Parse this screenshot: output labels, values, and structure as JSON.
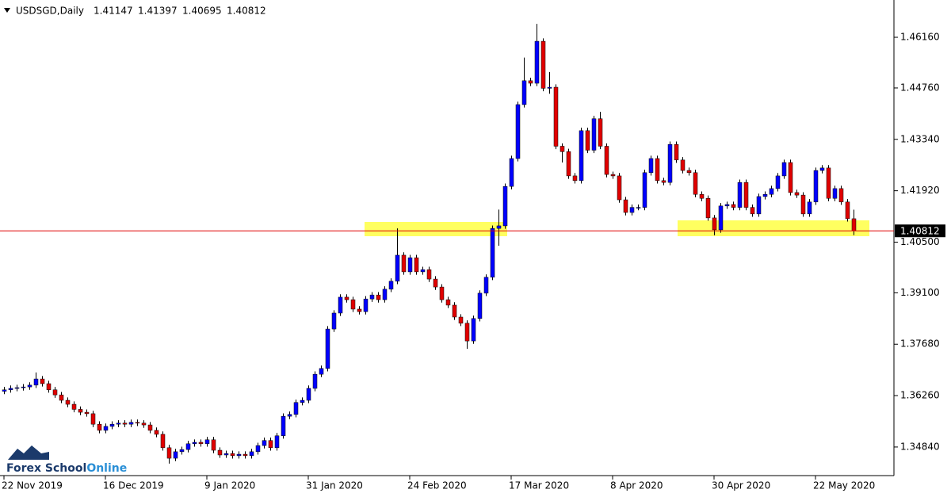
{
  "chart_data": {
    "type": "candlestick",
    "title": "USDSGD,Daily",
    "watermark": [
      "Forex School",
      "Online"
    ],
    "up_color": "#0000ff",
    "down_color": "#e00000",
    "price_line_color": "#e00000",
    "categories": [
      "22 Nov 2019",
      null,
      null,
      null,
      null,
      null,
      null,
      null,
      null,
      null,
      null,
      null,
      null,
      null,
      null,
      null,
      "16 Dec 2019",
      null,
      null,
      null,
      null,
      null,
      null,
      null,
      null,
      null,
      null,
      null,
      null,
      null,
      null,
      null,
      "9 Jan 2020",
      null,
      null,
      null,
      null,
      null,
      null,
      null,
      null,
      null,
      null,
      null,
      null,
      null,
      null,
      null,
      "31 Jan 2020",
      null,
      null,
      null,
      null,
      null,
      null,
      null,
      null,
      null,
      null,
      null,
      null,
      null,
      null,
      null,
      "24 Feb 2020",
      null,
      null,
      null,
      null,
      null,
      null,
      null,
      null,
      null,
      null,
      null,
      null,
      null,
      null,
      null,
      "17 Mar 2020",
      null,
      null,
      null,
      null,
      null,
      null,
      null,
      null,
      null,
      null,
      null,
      null,
      null,
      null,
      null,
      "8 Apr 2020",
      null,
      null,
      null,
      null,
      null,
      null,
      null,
      null,
      null,
      null,
      null,
      null,
      null,
      null,
      null,
      "30 Apr 2020",
      null,
      null,
      null,
      null,
      null,
      null,
      null,
      null,
      null,
      null,
      null,
      null,
      null,
      null,
      null,
      "22 May 2020",
      null,
      null,
      null,
      null,
      null,
      null
    ],
    "open": [
      1.3638,
      1.3642,
      1.3646,
      1.3648,
      1.365,
      1.3655,
      1.3672,
      1.3659,
      1.3642,
      1.3628,
      1.3613,
      1.3602,
      1.3588,
      1.358,
      1.3576,
      1.3547,
      1.353,
      1.3541,
      1.3547,
      1.355,
      1.3547,
      1.3552,
      1.355,
      1.3545,
      1.353,
      1.3519,
      1.3482,
      1.3453,
      1.3471,
      1.3477,
      1.3493,
      1.3497,
      1.3493,
      1.3504,
      1.3475,
      1.3462,
      1.3466,
      1.346,
      1.3464,
      1.346,
      1.3471,
      1.3488,
      1.3502,
      1.3482,
      1.3515,
      1.3569,
      1.3574,
      1.3607,
      1.3613,
      1.3646,
      1.3685,
      1.3701,
      1.381,
      1.3854,
      1.3898,
      1.3891,
      1.3865,
      1.3858,
      1.3893,
      1.3904,
      1.3891,
      1.392,
      1.3942,
      1.4014,
      1.3968,
      1.4007,
      1.3968,
      1.3974,
      1.3948,
      1.3926,
      1.3891,
      1.3876,
      1.3843,
      1.3826,
      1.3777,
      1.3839,
      1.3909,
      1.3953,
      1.4088,
      1.4095,
      1.4204,
      1.4281,
      1.443,
      1.4496,
      1.4489,
      1.4605,
      1.4475,
      1.4478,
      1.4315,
      1.43,
      1.4233,
      1.422,
      1.4358,
      1.4304,
      1.4391,
      1.4315,
      1.4237,
      1.4233,
      1.4167,
      1.4132,
      1.4146,
      1.4146,
      1.4242,
      1.4281,
      1.422,
      1.4215,
      1.432,
      1.4277,
      1.4248,
      1.4242,
      1.4182,
      1.4171,
      1.4117,
      1.4084,
      1.415,
      1.4154,
      1.4146,
      1.4215,
      1.4146,
      1.4128,
      1.4176,
      1.4182,
      1.4198,
      1.4233,
      1.427,
      1.4187,
      1.418,
      1.4128,
      1.4161,
      1.4248,
      1.4255,
      1.4171,
      1.4198,
      1.4161,
      1.41147
    ],
    "high": [
      1.365,
      1.3654,
      1.3656,
      1.3658,
      1.3663,
      1.369,
      1.368,
      1.3667,
      1.365,
      1.3636,
      1.3621,
      1.361,
      1.3596,
      1.3588,
      1.3584,
      1.3555,
      1.3549,
      1.3555,
      1.3558,
      1.3558,
      1.356,
      1.356,
      1.3558,
      1.3553,
      1.3538,
      1.3527,
      1.349,
      1.3479,
      1.3485,
      1.3501,
      1.3505,
      1.3505,
      1.3512,
      1.3512,
      1.3483,
      1.3474,
      1.3474,
      1.3472,
      1.3472,
      1.3479,
      1.3496,
      1.351,
      1.351,
      1.3523,
      1.3577,
      1.3582,
      1.3615,
      1.3621,
      1.3654,
      1.3693,
      1.3709,
      1.3818,
      1.3862,
      1.3906,
      1.3906,
      1.3899,
      1.3873,
      1.3901,
      1.3912,
      1.3912,
      1.3928,
      1.395,
      1.4088,
      1.4022,
      1.4015,
      1.4015,
      1.3982,
      1.3982,
      1.3956,
      1.3934,
      1.3899,
      1.3884,
      1.3851,
      1.3834,
      1.3847,
      1.3917,
      1.3961,
      1.4096,
      1.414,
      1.4212,
      1.4289,
      1.4438,
      1.456,
      1.4504,
      1.4653,
      1.4613,
      1.452,
      1.4486,
      1.4323,
      1.4308,
      1.4241,
      1.4366,
      1.4366,
      1.4399,
      1.441,
      1.4323,
      1.4245,
      1.4241,
      1.4175,
      1.4154,
      1.4154,
      1.425,
      1.4289,
      1.4289,
      1.4228,
      1.4328,
      1.4328,
      1.4285,
      1.4256,
      1.425,
      1.419,
      1.4179,
      1.4125,
      1.4158,
      1.4162,
      1.4162,
      1.4223,
      1.4223,
      1.4154,
      1.4184,
      1.419,
      1.4206,
      1.4241,
      1.4278,
      1.4278,
      1.4195,
      1.4188,
      1.4169,
      1.4256,
      1.4263,
      1.4263,
      1.4206,
      1.4206,
      1.4169,
      1.41397
    ],
    "low": [
      1.363,
      1.3634,
      1.3638,
      1.364,
      1.3642,
      1.3647,
      1.3651,
      1.3634,
      1.362,
      1.3605,
      1.3594,
      1.358,
      1.3572,
      1.3568,
      1.3539,
      1.3522,
      1.3522,
      1.3533,
      1.3539,
      1.3539,
      1.3539,
      1.3542,
      1.3537,
      1.3522,
      1.3511,
      1.3474,
      1.3438,
      1.3445,
      1.3463,
      1.3469,
      1.3485,
      1.3485,
      1.3485,
      1.3467,
      1.3454,
      1.3454,
      1.3452,
      1.3452,
      1.3452,
      1.3452,
      1.3463,
      1.348,
      1.3474,
      1.3474,
      1.3507,
      1.3561,
      1.3566,
      1.3599,
      1.3605,
      1.3638,
      1.3677,
      1.3693,
      1.3802,
      1.3846,
      1.3883,
      1.3857,
      1.385,
      1.385,
      1.3885,
      1.3883,
      1.3883,
      1.3912,
      1.3934,
      1.396,
      1.396,
      1.396,
      1.396,
      1.394,
      1.3918,
      1.3883,
      1.3868,
      1.3835,
      1.3818,
      1.3755,
      1.3769,
      1.3831,
      1.3901,
      1.3945,
      1.404,
      1.4087,
      1.4196,
      1.4273,
      1.4422,
      1.4481,
      1.4481,
      1.4467,
      1.446,
      1.4307,
      1.427,
      1.4225,
      1.4212,
      1.4212,
      1.4296,
      1.4296,
      1.4307,
      1.4229,
      1.4225,
      1.4159,
      1.4124,
      1.4124,
      1.4138,
      1.4138,
      1.4234,
      1.4212,
      1.4207,
      1.4207,
      1.4269,
      1.424,
      1.4234,
      1.4174,
      1.4163,
      1.4109,
      1.4069,
      1.4076,
      1.4142,
      1.4138,
      1.4138,
      1.4138,
      1.412,
      1.412,
      1.4168,
      1.4174,
      1.419,
      1.4225,
      1.4179,
      1.4172,
      1.412,
      1.412,
      1.4153,
      1.424,
      1.4163,
      1.4163,
      1.4153,
      1.4107,
      1.40695
    ],
    "close": [
      1.3642,
      1.3646,
      1.3648,
      1.365,
      1.3655,
      1.3672,
      1.3659,
      1.3642,
      1.3628,
      1.3613,
      1.3602,
      1.3588,
      1.358,
      1.3576,
      1.3547,
      1.353,
      1.3541,
      1.3547,
      1.355,
      1.3547,
      1.3552,
      1.355,
      1.3545,
      1.353,
      1.3519,
      1.3482,
      1.3453,
      1.3471,
      1.3477,
      1.3493,
      1.3497,
      1.3493,
      1.3504,
      1.3475,
      1.3462,
      1.3466,
      1.346,
      1.3464,
      1.346,
      1.3471,
      1.3488,
      1.3502,
      1.3482,
      1.3515,
      1.3569,
      1.3574,
      1.3607,
      1.3613,
      1.3646,
      1.3685,
      1.3701,
      1.381,
      1.3854,
      1.3898,
      1.3891,
      1.3865,
      1.3858,
      1.3893,
      1.3904,
      1.3891,
      1.392,
      1.3942,
      1.4014,
      1.3968,
      1.4007,
      1.3968,
      1.3974,
      1.3948,
      1.3926,
      1.3891,
      1.3876,
      1.3843,
      1.3826,
      1.3777,
      1.3839,
      1.3909,
      1.3953,
      1.4088,
      1.4095,
      1.4204,
      1.4281,
      1.443,
      1.4496,
      1.4489,
      1.4605,
      1.4475,
      1.4478,
      1.4315,
      1.43,
      1.4233,
      1.422,
      1.4358,
      1.4304,
      1.4391,
      1.4315,
      1.4237,
      1.4233,
      1.4167,
      1.4132,
      1.4146,
      1.4146,
      1.4242,
      1.4281,
      1.422,
      1.4215,
      1.432,
      1.4277,
      1.4248,
      1.4242,
      1.4182,
      1.4171,
      1.4117,
      1.4084,
      1.415,
      1.4154,
      1.4146,
      1.4215,
      1.4146,
      1.4128,
      1.4176,
      1.4182,
      1.4198,
      1.4233,
      1.427,
      1.4187,
      1.418,
      1.4128,
      1.4161,
      1.4248,
      1.4255,
      1.4171,
      1.4198,
      1.4161,
      1.41147,
      1.40812
    ],
    "ylim": [
      1.3405,
      1.4719
    ],
    "yticks": [
      {
        "value": 1.3484,
        "label": "1.34840"
      },
      {
        "value": 1.3626,
        "label": "1.36260"
      },
      {
        "value": 1.3768,
        "label": "1.37680"
      },
      {
        "value": 1.391,
        "label": "1.39100"
      },
      {
        "value": 1.405,
        "label": "1.40500"
      },
      {
        "value": 1.4192,
        "label": "1.41920"
      },
      {
        "value": 1.4334,
        "label": "1.43340"
      },
      {
        "value": 1.4476,
        "label": "1.44760"
      },
      {
        "value": 1.4616,
        "label": "1.46160"
      }
    ]
  }
}
